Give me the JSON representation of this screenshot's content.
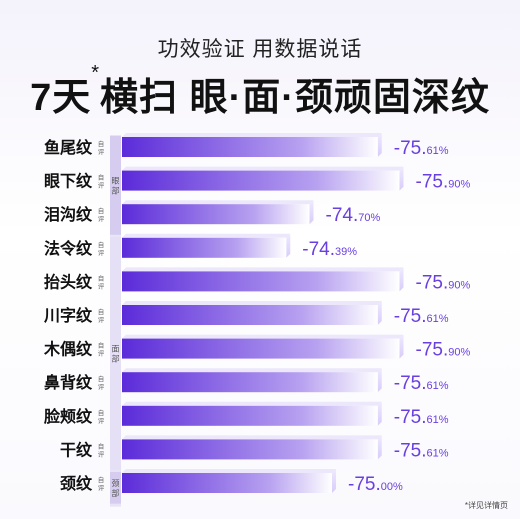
{
  "header": {
    "subtitle": "功效验证 用数据说话",
    "title_main": "7天",
    "title_star": "*",
    "title_rest": "横扫 眼·面·颈顽固深纹"
  },
  "footnote": "*详见详情页",
  "colors": {
    "bar_start": "#5b2bd9",
    "bar_end": "#ffffff",
    "value_text": "#6a3fe0",
    "label_text": "#111111",
    "group_col": "#d9d2ef"
  },
  "chart_data": {
    "type": "bar",
    "orientation": "horizontal",
    "categories": [
      "鱼尾纹",
      "眼下纹",
      "泪沟纹",
      "法令纹",
      "抬头纹",
      "川字纹",
      "木偶纹",
      "鼻背纹",
      "脸颊纹",
      "干纹",
      "颈纹"
    ],
    "category_tags": [
      "自评",
      "自评",
      "自评",
      "自评",
      "自评",
      "自评",
      "自评",
      "自评",
      "自评",
      "自评",
      "自评"
    ],
    "values": [
      -75.61,
      -75.9,
      -74.7,
      -74.39,
      -75.9,
      -75.61,
      -75.9,
      -75.61,
      -75.61,
      -75.61,
      -75.0
    ],
    "value_labels": [
      {
        "major": "-75.",
        "minor": "61%"
      },
      {
        "major": "-75.",
        "minor": "90%"
      },
      {
        "major": "-74.",
        "minor": "70%"
      },
      {
        "major": "-74.",
        "minor": "39%"
      },
      {
        "major": "-75.",
        "minor": "90%"
      },
      {
        "major": "-75.",
        "minor": "61%"
      },
      {
        "major": "-75.",
        "minor": "90%"
      },
      {
        "major": "-75.",
        "minor": "61%"
      },
      {
        "major": "-75.",
        "minor": "61%"
      },
      {
        "major": "-75.",
        "minor": "61%"
      },
      {
        "major": "-75.",
        "minor": "00%"
      }
    ],
    "groups": [
      {
        "label": "眼部",
        "start": 0,
        "end": 2
      },
      {
        "label": "面部",
        "start": 3,
        "end": 9
      },
      {
        "label": "颈部",
        "start": 10,
        "end": 10
      }
    ],
    "title": "",
    "xlabel": "",
    "ylabel": "",
    "legend": "none",
    "grid": false
  }
}
